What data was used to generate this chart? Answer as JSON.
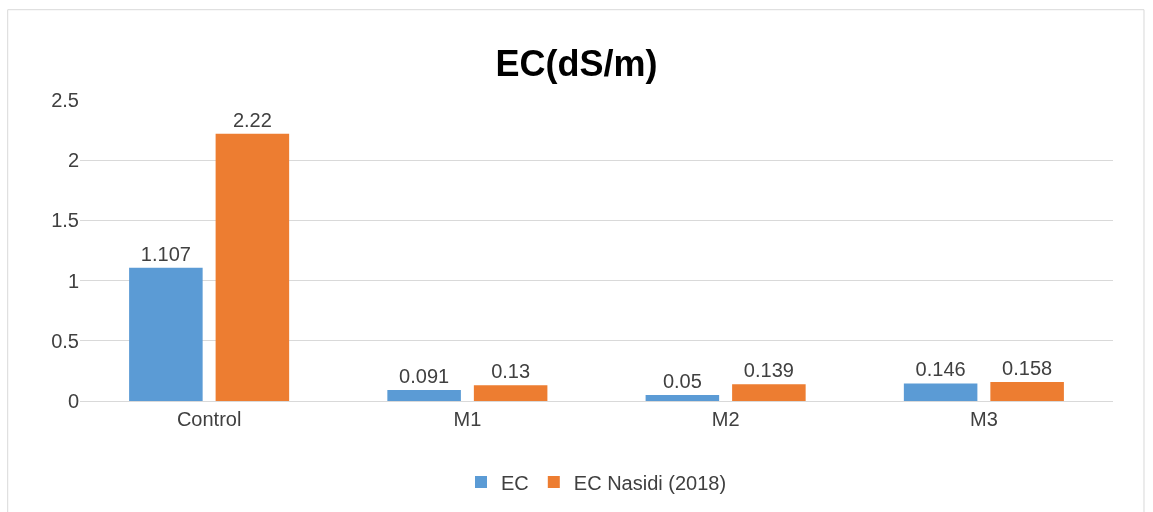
{
  "chart_data": {
    "type": "bar",
    "title": "EC(dS/m)",
    "categories": [
      "Control",
      "M1",
      "M2",
      "M3"
    ],
    "series": [
      {
        "name": "EC",
        "color": "#5b9bd5",
        "values": [
          1.107,
          0.091,
          0.05,
          0.146
        ]
      },
      {
        "name": "EC Nasidi (2018)",
        "color": "#ed7d31",
        "values": [
          2.22,
          0.13,
          0.139,
          0.158
        ]
      }
    ],
    "ylim": [
      0,
      2.5
    ],
    "yticks": [
      0,
      0.5,
      1,
      1.5,
      2,
      2.5
    ],
    "grid": "y",
    "legend": "bottom",
    "data_labels": true
  }
}
